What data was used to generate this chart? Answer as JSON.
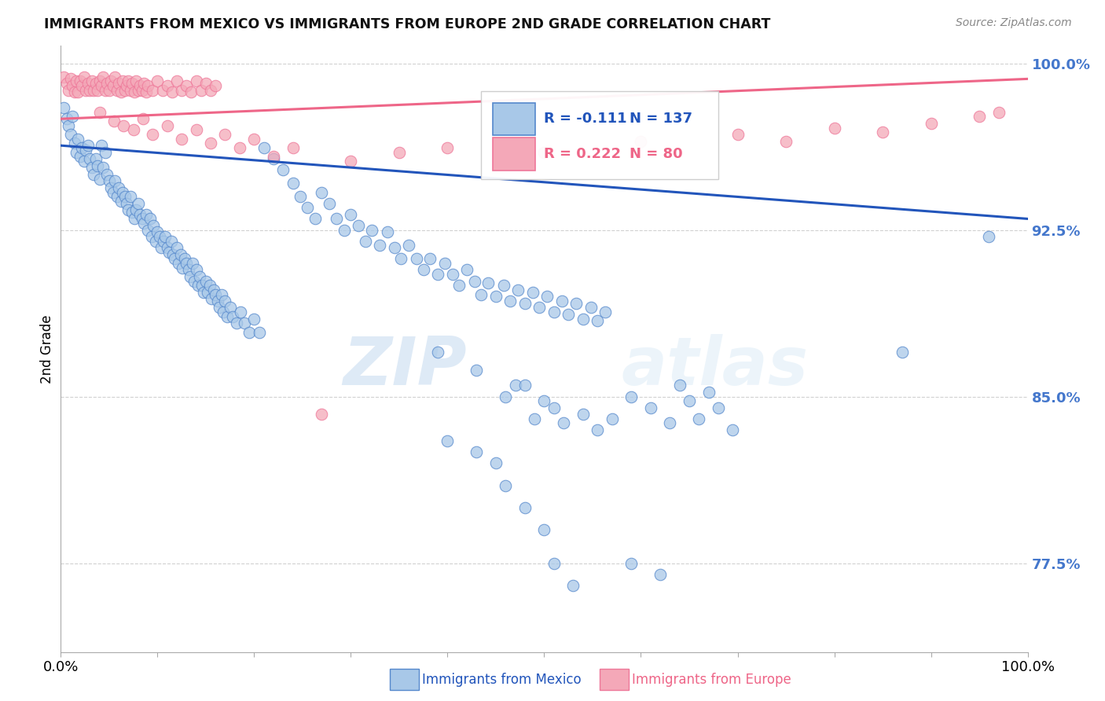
{
  "title": "IMMIGRANTS FROM MEXICO VS IMMIGRANTS FROM EUROPE 2ND GRADE CORRELATION CHART",
  "source": "Source: ZipAtlas.com",
  "ylabel": "2nd Grade",
  "ytick_labels": [
    "100.0%",
    "92.5%",
    "85.0%",
    "77.5%"
  ],
  "ytick_values": [
    1.0,
    0.925,
    0.85,
    0.775
  ],
  "legend_blue_r": "-0.111",
  "legend_blue_n": "137",
  "legend_pink_r": "0.222",
  "legend_pink_n": "80",
  "legend_blue_label": "Immigrants from Mexico",
  "legend_pink_label": "Immigrants from Europe",
  "watermark_zip": "ZIP",
  "watermark_atlas": "atlas",
  "blue_color": "#A8C8E8",
  "pink_color": "#F4A8B8",
  "blue_edge_color": "#5588CC",
  "pink_edge_color": "#EE7799",
  "blue_line_color": "#2255BB",
  "pink_line_color": "#EE6688",
  "right_axis_color": "#4477CC",
  "background_color": "#FFFFFF",
  "blue_scatter": [
    [
      0.003,
      0.98
    ],
    [
      0.006,
      0.975
    ],
    [
      0.008,
      0.972
    ],
    [
      0.01,
      0.968
    ],
    [
      0.012,
      0.976
    ],
    [
      0.014,
      0.964
    ],
    [
      0.016,
      0.96
    ],
    [
      0.018,
      0.966
    ],
    [
      0.02,
      0.958
    ],
    [
      0.022,
      0.962
    ],
    [
      0.024,
      0.956
    ],
    [
      0.026,
      0.961
    ],
    [
      0.028,
      0.963
    ],
    [
      0.03,
      0.957
    ],
    [
      0.032,
      0.953
    ],
    [
      0.034,
      0.95
    ],
    [
      0.036,
      0.957
    ],
    [
      0.038,
      0.954
    ],
    [
      0.04,
      0.948
    ],
    [
      0.042,
      0.963
    ],
    [
      0.044,
      0.953
    ],
    [
      0.046,
      0.96
    ],
    [
      0.048,
      0.95
    ],
    [
      0.05,
      0.947
    ],
    [
      0.052,
      0.944
    ],
    [
      0.054,
      0.942
    ],
    [
      0.056,
      0.947
    ],
    [
      0.058,
      0.94
    ],
    [
      0.06,
      0.944
    ],
    [
      0.062,
      0.938
    ],
    [
      0.064,
      0.942
    ],
    [
      0.066,
      0.94
    ],
    [
      0.068,
      0.937
    ],
    [
      0.07,
      0.934
    ],
    [
      0.072,
      0.94
    ],
    [
      0.074,
      0.933
    ],
    [
      0.076,
      0.93
    ],
    [
      0.078,
      0.934
    ],
    [
      0.08,
      0.937
    ],
    [
      0.082,
      0.932
    ],
    [
      0.084,
      0.93
    ],
    [
      0.086,
      0.928
    ],
    [
      0.088,
      0.932
    ],
    [
      0.09,
      0.925
    ],
    [
      0.092,
      0.93
    ],
    [
      0.094,
      0.922
    ],
    [
      0.096,
      0.927
    ],
    [
      0.098,
      0.92
    ],
    [
      0.1,
      0.924
    ],
    [
      0.102,
      0.922
    ],
    [
      0.104,
      0.917
    ],
    [
      0.106,
      0.92
    ],
    [
      0.108,
      0.922
    ],
    [
      0.11,
      0.917
    ],
    [
      0.112,
      0.915
    ],
    [
      0.114,
      0.92
    ],
    [
      0.116,
      0.914
    ],
    [
      0.118,
      0.912
    ],
    [
      0.12,
      0.917
    ],
    [
      0.122,
      0.91
    ],
    [
      0.124,
      0.914
    ],
    [
      0.126,
      0.908
    ],
    [
      0.128,
      0.912
    ],
    [
      0.13,
      0.91
    ],
    [
      0.132,
      0.907
    ],
    [
      0.134,
      0.904
    ],
    [
      0.136,
      0.91
    ],
    [
      0.138,
      0.902
    ],
    [
      0.14,
      0.907
    ],
    [
      0.142,
      0.9
    ],
    [
      0.144,
      0.904
    ],
    [
      0.146,
      0.9
    ],
    [
      0.148,
      0.897
    ],
    [
      0.15,
      0.902
    ],
    [
      0.152,
      0.897
    ],
    [
      0.154,
      0.9
    ],
    [
      0.156,
      0.894
    ],
    [
      0.158,
      0.898
    ],
    [
      0.16,
      0.896
    ],
    [
      0.162,
      0.893
    ],
    [
      0.164,
      0.89
    ],
    [
      0.166,
      0.896
    ],
    [
      0.168,
      0.888
    ],
    [
      0.17,
      0.893
    ],
    [
      0.172,
      0.886
    ],
    [
      0.175,
      0.89
    ],
    [
      0.178,
      0.886
    ],
    [
      0.182,
      0.883
    ],
    [
      0.186,
      0.888
    ],
    [
      0.19,
      0.883
    ],
    [
      0.195,
      0.879
    ],
    [
      0.2,
      0.885
    ],
    [
      0.205,
      0.879
    ],
    [
      0.21,
      0.962
    ],
    [
      0.22,
      0.957
    ],
    [
      0.23,
      0.952
    ],
    [
      0.24,
      0.946
    ],
    [
      0.248,
      0.94
    ],
    [
      0.255,
      0.935
    ],
    [
      0.263,
      0.93
    ],
    [
      0.27,
      0.942
    ],
    [
      0.278,
      0.937
    ],
    [
      0.285,
      0.93
    ],
    [
      0.293,
      0.925
    ],
    [
      0.3,
      0.932
    ],
    [
      0.308,
      0.927
    ],
    [
      0.315,
      0.92
    ],
    [
      0.322,
      0.925
    ],
    [
      0.33,
      0.918
    ],
    [
      0.338,
      0.924
    ],
    [
      0.345,
      0.917
    ],
    [
      0.352,
      0.912
    ],
    [
      0.36,
      0.918
    ],
    [
      0.368,
      0.912
    ],
    [
      0.375,
      0.907
    ],
    [
      0.382,
      0.912
    ],
    [
      0.39,
      0.905
    ],
    [
      0.397,
      0.91
    ],
    [
      0.405,
      0.905
    ],
    [
      0.412,
      0.9
    ],
    [
      0.42,
      0.907
    ],
    [
      0.428,
      0.902
    ],
    [
      0.435,
      0.896
    ],
    [
      0.442,
      0.901
    ],
    [
      0.45,
      0.895
    ],
    [
      0.458,
      0.9
    ],
    [
      0.465,
      0.893
    ],
    [
      0.473,
      0.898
    ],
    [
      0.48,
      0.892
    ],
    [
      0.488,
      0.897
    ],
    [
      0.495,
      0.89
    ],
    [
      0.503,
      0.895
    ],
    [
      0.51,
      0.888
    ],
    [
      0.518,
      0.893
    ],
    [
      0.525,
      0.887
    ],
    [
      0.533,
      0.892
    ],
    [
      0.54,
      0.885
    ],
    [
      0.548,
      0.89
    ],
    [
      0.555,
      0.884
    ],
    [
      0.563,
      0.888
    ],
    [
      0.87,
      0.87
    ],
    [
      0.39,
      0.87
    ],
    [
      0.43,
      0.862
    ],
    [
      0.47,
      0.855
    ],
    [
      0.49,
      0.84
    ],
    [
      0.51,
      0.845
    ],
    [
      0.52,
      0.838
    ],
    [
      0.46,
      0.85
    ],
    [
      0.48,
      0.855
    ],
    [
      0.5,
      0.848
    ],
    [
      0.54,
      0.842
    ],
    [
      0.555,
      0.835
    ],
    [
      0.57,
      0.84
    ],
    [
      0.59,
      0.85
    ],
    [
      0.61,
      0.845
    ],
    [
      0.63,
      0.838
    ],
    [
      0.64,
      0.855
    ],
    [
      0.65,
      0.848
    ],
    [
      0.66,
      0.84
    ],
    [
      0.67,
      0.852
    ],
    [
      0.68,
      0.845
    ],
    [
      0.695,
      0.835
    ],
    [
      0.4,
      0.83
    ],
    [
      0.43,
      0.825
    ],
    [
      0.45,
      0.82
    ],
    [
      0.46,
      0.81
    ],
    [
      0.48,
      0.8
    ],
    [
      0.5,
      0.79
    ],
    [
      0.51,
      0.775
    ],
    [
      0.53,
      0.765
    ],
    [
      0.59,
      0.775
    ],
    [
      0.62,
      0.77
    ],
    [
      0.96,
      0.922
    ]
  ],
  "pink_scatter": [
    [
      0.003,
      0.994
    ],
    [
      0.006,
      0.991
    ],
    [
      0.008,
      0.988
    ],
    [
      0.01,
      0.993
    ],
    [
      0.012,
      0.99
    ],
    [
      0.014,
      0.987
    ],
    [
      0.016,
      0.992
    ],
    [
      0.018,
      0.987
    ],
    [
      0.02,
      0.992
    ],
    [
      0.022,
      0.99
    ],
    [
      0.024,
      0.994
    ],
    [
      0.026,
      0.988
    ],
    [
      0.028,
      0.991
    ],
    [
      0.03,
      0.988
    ],
    [
      0.032,
      0.992
    ],
    [
      0.034,
      0.988
    ],
    [
      0.036,
      0.991
    ],
    [
      0.038,
      0.988
    ],
    [
      0.04,
      0.992
    ],
    [
      0.042,
      0.99
    ],
    [
      0.044,
      0.994
    ],
    [
      0.046,
      0.988
    ],
    [
      0.048,
      0.991
    ],
    [
      0.05,
      0.988
    ],
    [
      0.052,
      0.992
    ],
    [
      0.054,
      0.99
    ],
    [
      0.056,
      0.994
    ],
    [
      0.058,
      0.988
    ],
    [
      0.06,
      0.991
    ],
    [
      0.062,
      0.987
    ],
    [
      0.064,
      0.992
    ],
    [
      0.066,
      0.988
    ],
    [
      0.068,
      0.99
    ],
    [
      0.07,
      0.992
    ],
    [
      0.072,
      0.988
    ],
    [
      0.074,
      0.991
    ],
    [
      0.076,
      0.987
    ],
    [
      0.078,
      0.992
    ],
    [
      0.08,
      0.988
    ],
    [
      0.082,
      0.99
    ],
    [
      0.084,
      0.988
    ],
    [
      0.086,
      0.991
    ],
    [
      0.088,
      0.987
    ],
    [
      0.09,
      0.99
    ],
    [
      0.095,
      0.988
    ],
    [
      0.1,
      0.992
    ],
    [
      0.105,
      0.988
    ],
    [
      0.11,
      0.99
    ],
    [
      0.115,
      0.987
    ],
    [
      0.12,
      0.992
    ],
    [
      0.125,
      0.988
    ],
    [
      0.13,
      0.99
    ],
    [
      0.135,
      0.987
    ],
    [
      0.14,
      0.992
    ],
    [
      0.145,
      0.988
    ],
    [
      0.15,
      0.991
    ],
    [
      0.155,
      0.988
    ],
    [
      0.16,
      0.99
    ],
    [
      0.04,
      0.978
    ],
    [
      0.055,
      0.974
    ],
    [
      0.065,
      0.972
    ],
    [
      0.075,
      0.97
    ],
    [
      0.085,
      0.975
    ],
    [
      0.095,
      0.968
    ],
    [
      0.11,
      0.972
    ],
    [
      0.125,
      0.966
    ],
    [
      0.14,
      0.97
    ],
    [
      0.155,
      0.964
    ],
    [
      0.17,
      0.968
    ],
    [
      0.185,
      0.962
    ],
    [
      0.2,
      0.966
    ],
    [
      0.22,
      0.958
    ],
    [
      0.24,
      0.962
    ],
    [
      0.3,
      0.956
    ],
    [
      0.35,
      0.96
    ],
    [
      0.4,
      0.962
    ],
    [
      0.5,
      0.96
    ],
    [
      0.6,
      0.965
    ],
    [
      0.7,
      0.968
    ],
    [
      0.75,
      0.965
    ],
    [
      0.8,
      0.971
    ],
    [
      0.85,
      0.969
    ],
    [
      0.9,
      0.973
    ],
    [
      0.95,
      0.976
    ],
    [
      0.97,
      0.978
    ],
    [
      0.27,
      0.842
    ]
  ],
  "blue_trend_x": [
    0.0,
    1.0
  ],
  "blue_trend_y": [
    0.963,
    0.93
  ],
  "pink_trend_x": [
    0.0,
    1.0
  ],
  "pink_trend_y": [
    0.975,
    0.993
  ],
  "xlim": [
    0.0,
    1.0
  ],
  "ylim": [
    0.735,
    1.008
  ]
}
